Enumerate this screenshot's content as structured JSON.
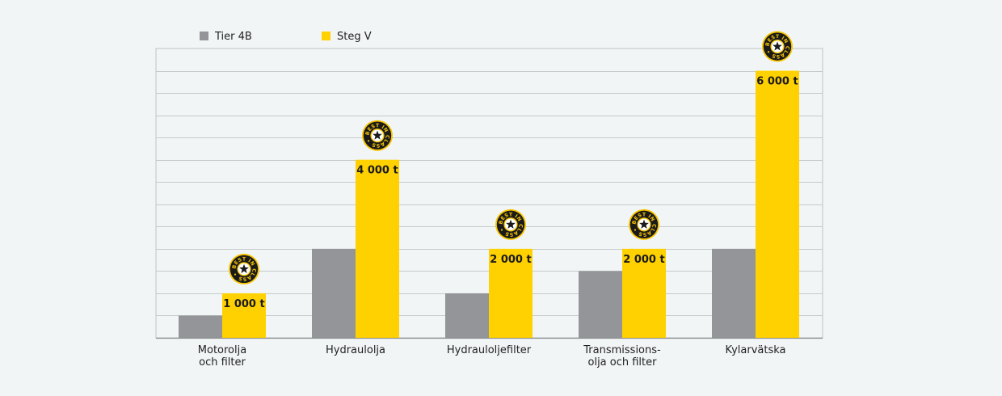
{
  "chart_data": {
    "type": "bar",
    "categories": [
      [
        "Motorolja",
        "och filter"
      ],
      [
        "Hydraulolja"
      ],
      [
        "Hydrauloljefilter"
      ],
      [
        "Transmissions-",
        "olja och filter"
      ],
      [
        "Kylarvätska"
      ]
    ],
    "series": [
      {
        "name": "Tier 4B",
        "color": "#939598",
        "values": [
          500,
          2000,
          1000,
          1500,
          2000
        ]
      },
      {
        "name": "Steg V",
        "color": "#ffd100",
        "values": [
          1000,
          4000,
          2000,
          2000,
          6000
        ],
        "labels": [
          "1 000 t",
          "4 000 t",
          "2 000 t",
          "2 000 t",
          "6 000 t"
        ]
      }
    ],
    "badge_text": "BEST IN CLASS",
    "ylim": [
      0,
      6500
    ],
    "grid": true,
    "legend_position": "top-left"
  }
}
